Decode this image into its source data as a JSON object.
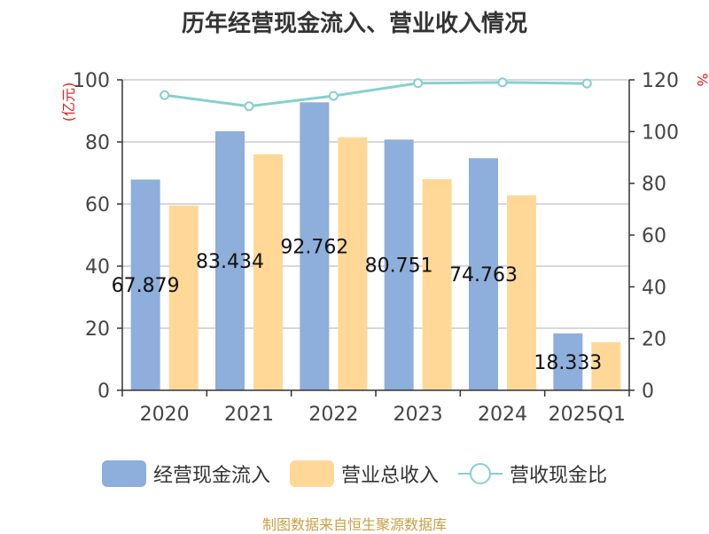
{
  "chart_data": {
    "type": "bar",
    "title": "历年经营现金流入、营业收入情况",
    "categories": [
      "2020",
      "2021",
      "2022",
      "2023",
      "2024",
      "2025Q1"
    ],
    "series": [
      {
        "name": "经营现金流入",
        "type": "bar",
        "axis": "left",
        "color": "#8eaedb",
        "values": [
          67.879,
          83.434,
          92.762,
          80.751,
          74.763,
          18.333
        ]
      },
      {
        "name": "营业总收入",
        "type": "bar",
        "axis": "left",
        "color": "#ffd898",
        "values": [
          59.5,
          76.0,
          81.5,
          68.0,
          62.8,
          15.5
        ]
      },
      {
        "name": "营收现金比",
        "type": "line",
        "axis": "right",
        "color": "#86d0d0",
        "values": [
          114.1,
          109.8,
          113.8,
          118.7,
          119.0,
          118.6
        ]
      }
    ],
    "data_labels": [
      "67.879",
      "83.434",
      "92.762",
      "80.751",
      "74.763",
      "18.333"
    ],
    "y_left": {
      "unit": "(亿元)",
      "min": 0,
      "max": 100,
      "ticks": [
        "0",
        "20",
        "40",
        "60",
        "80",
        "100"
      ]
    },
    "y_right": {
      "unit": "%",
      "min": 0,
      "max": 120,
      "ticks": [
        "0",
        "20",
        "40",
        "60",
        "80",
        "100",
        "120"
      ]
    },
    "grid": true,
    "legend_position": "bottom"
  },
  "legend": {
    "items": [
      {
        "label": "经营现金流入"
      },
      {
        "label": "营业总收入"
      },
      {
        "label": "营收现金比"
      }
    ]
  },
  "source": "制图数据来自恒生聚源数据库"
}
